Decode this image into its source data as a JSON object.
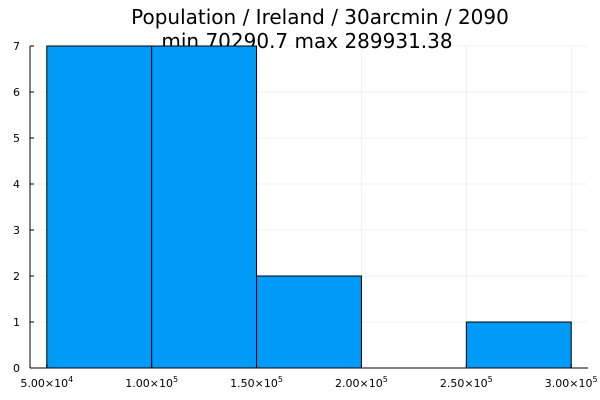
{
  "chart_data": {
    "type": "bar",
    "title_lines": [
      "Population / Ireland / 30arcmin / 2090",
      "min 70290.7  max 289931.38"
    ],
    "xlabel": "",
    "ylabel": "",
    "bins": [
      {
        "x0": 50000,
        "x1": 100000,
        "count": 7
      },
      {
        "x0": 100000,
        "x1": 150000,
        "count": 7
      },
      {
        "x0": 150000,
        "x1": 200000,
        "count": 2
      },
      {
        "x0": 200000,
        "x1": 250000,
        "count": 0
      },
      {
        "x0": 250000,
        "x1": 300000,
        "count": 1
      }
    ],
    "xlim": [
      42000,
      308000
    ],
    "ylim": [
      0,
      7
    ],
    "x_ticks": [
      {
        "value": 50000,
        "mantissa": "5.00×10",
        "exp": "4"
      },
      {
        "value": 100000,
        "mantissa": "1.00×10",
        "exp": "5"
      },
      {
        "value": 150000,
        "mantissa": "1.50×10",
        "exp": "5"
      },
      {
        "value": 200000,
        "mantissa": "2.00×10",
        "exp": "5"
      },
      {
        "value": 250000,
        "mantissa": "2.50×10",
        "exp": "5"
      },
      {
        "value": 300000,
        "mantissa": "3.00×10",
        "exp": "5"
      }
    ],
    "y_ticks": [
      "0",
      "1",
      "2",
      "3",
      "4",
      "5",
      "6",
      "7"
    ],
    "grid": true,
    "legend": "none",
    "bar_color": "#009af9",
    "bar_edge_color": "#000000"
  }
}
